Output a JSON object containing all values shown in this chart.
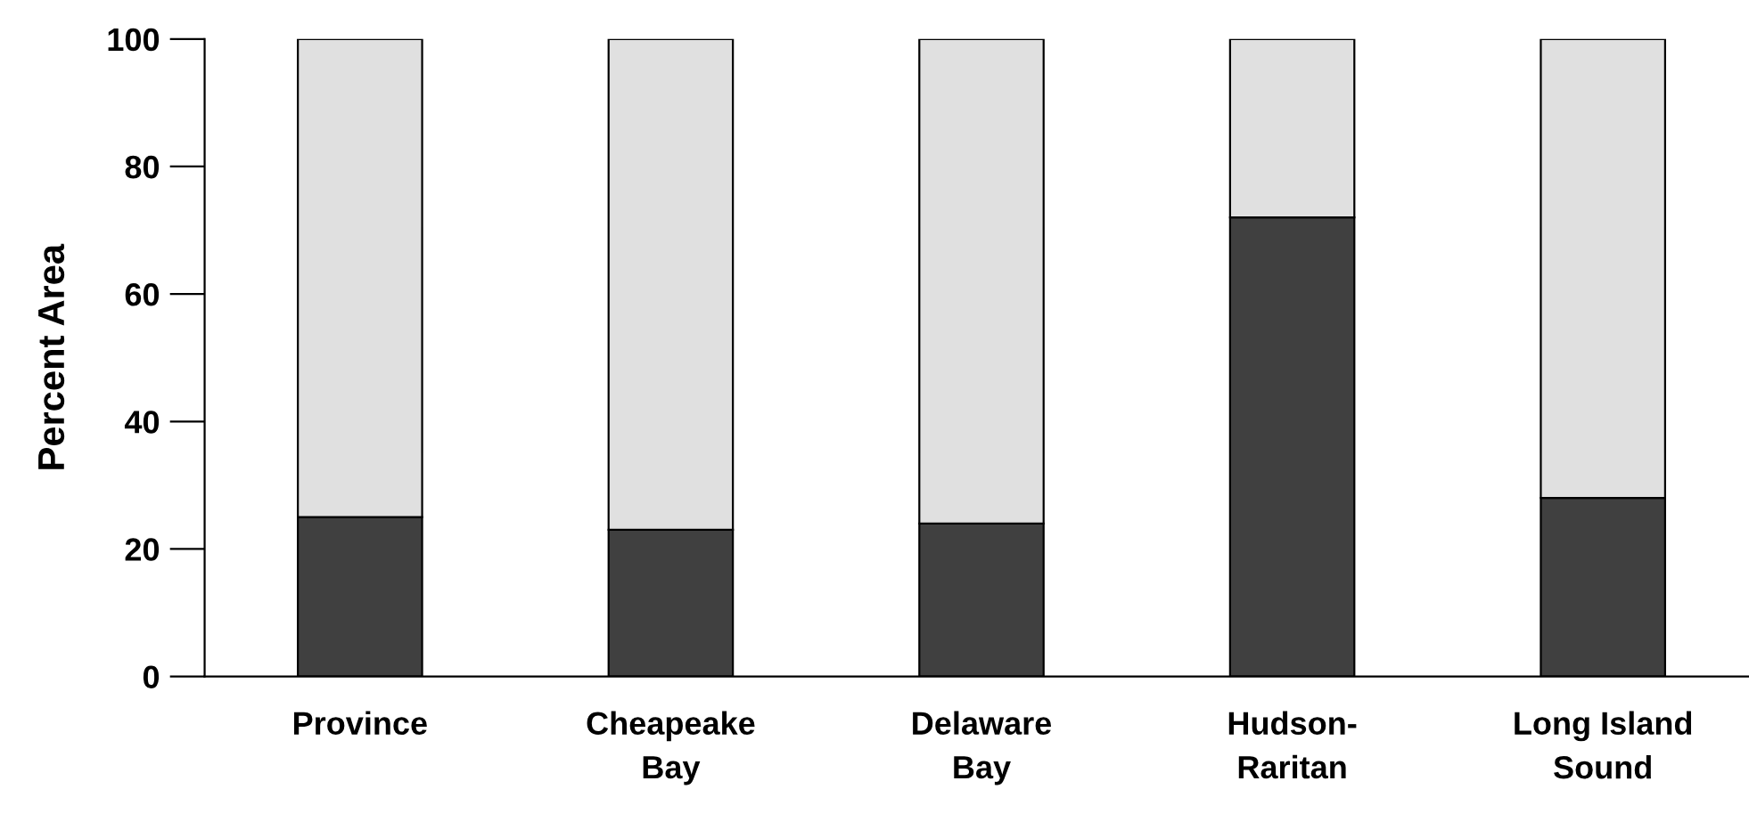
{
  "chart_data": {
    "type": "bar",
    "stacked": true,
    "ylabel": "Percent Area",
    "categories": [
      "Province",
      "Cheapeake\nBay",
      "Delaware\nBay",
      "Hudson-\nRaritan",
      "Long Island\nSound"
    ],
    "series": [
      {
        "color": "#404040",
        "values": [
          25,
          23,
          24,
          72,
          28
        ]
      },
      {
        "color": "#e0e0e0",
        "values": [
          75,
          77,
          76,
          28,
          72
        ]
      }
    ],
    "ylim": [
      0,
      100
    ],
    "yticks": [
      0,
      20,
      40,
      60,
      80,
      100
    ],
    "grid": false,
    "legend": false
  }
}
